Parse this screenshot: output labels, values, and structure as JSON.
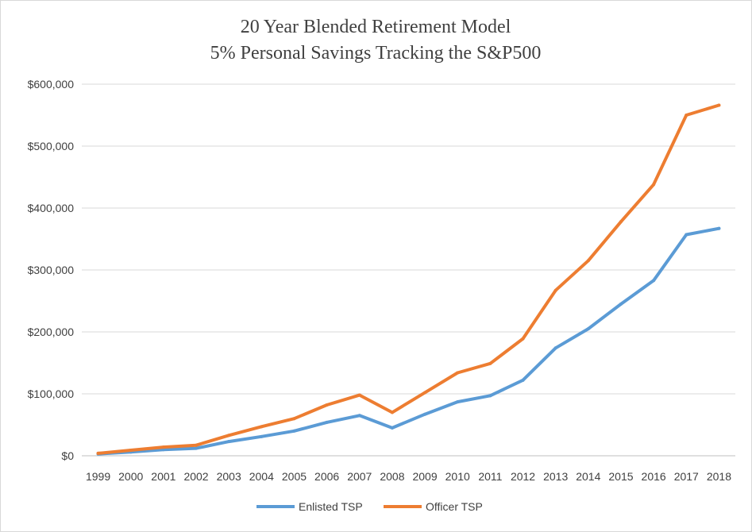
{
  "chart_data": {
    "type": "line",
    "title": "20 Year Blended Retirement Model",
    "subtitle": "5% Personal Savings Tracking the S&P500",
    "xlabel": "",
    "ylabel": "",
    "categories": [
      "1999",
      "2000",
      "2001",
      "2002",
      "2003",
      "2004",
      "2005",
      "2006",
      "2007",
      "2008",
      "2009",
      "2010",
      "2011",
      "2012",
      "2013",
      "2014",
      "2015",
      "2016",
      "2017",
      "2018"
    ],
    "ylim": [
      0,
      600000
    ],
    "yticks": [
      0,
      100000,
      200000,
      300000,
      400000,
      500000,
      600000
    ],
    "ytick_labels": [
      "$0",
      "$100,000",
      "$200,000",
      "$300,000",
      "$400,000",
      "$500,000",
      "$600,000"
    ],
    "grid": true,
    "legend_position": "bottom",
    "series": [
      {
        "name": "Enlisted TSP",
        "color": "#5b9bd5",
        "values": [
          3000,
          6000,
          10000,
          12000,
          23000,
          31000,
          40000,
          54000,
          65000,
          45000,
          67000,
          87000,
          97000,
          122000,
          174000,
          205000,
          245000,
          283000,
          357000,
          367000
        ]
      },
      {
        "name": "Officer TSP",
        "color": "#ed7d31",
        "values": [
          4000,
          9000,
          14000,
          17000,
          33000,
          47000,
          60000,
          82000,
          98000,
          70000,
          102000,
          134000,
          149000,
          189000,
          267000,
          315000,
          378000,
          438000,
          550000,
          566000
        ]
      }
    ]
  }
}
